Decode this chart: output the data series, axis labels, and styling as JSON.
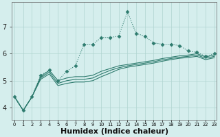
{
  "x": [
    0,
    1,
    2,
    3,
    4,
    5,
    6,
    7,
    8,
    9,
    10,
    11,
    12,
    13,
    14,
    15,
    16,
    17,
    18,
    19,
    20,
    21,
    22,
    23
  ],
  "line1_x": [
    0,
    1,
    2,
    3,
    4,
    5,
    6,
    7,
    8,
    9,
    10,
    11,
    12,
    13,
    14,
    15,
    16,
    17,
    18,
    19,
    20,
    21,
    22,
    23
  ],
  "line1_y": [
    4.4,
    3.9,
    4.4,
    5.2,
    5.4,
    5.0,
    5.35,
    5.55,
    6.35,
    6.35,
    6.6,
    6.6,
    6.65,
    7.55,
    6.75,
    6.65,
    6.4,
    6.35,
    6.35,
    6.3,
    6.1,
    6.05,
    5.9,
    6.0
  ],
  "line2_x": [
    0,
    1,
    2,
    3,
    4,
    5,
    6,
    7,
    8,
    9,
    10,
    11,
    12,
    13,
    14,
    15,
    16,
    17,
    18,
    19,
    20,
    21,
    22,
    23
  ],
  "line2_y": [
    4.4,
    3.9,
    4.4,
    5.15,
    5.38,
    5.0,
    5.1,
    5.15,
    5.15,
    5.2,
    5.35,
    5.45,
    5.55,
    5.6,
    5.65,
    5.7,
    5.75,
    5.82,
    5.87,
    5.92,
    5.95,
    6.0,
    5.88,
    5.95
  ],
  "line3_x": [
    0,
    1,
    2,
    3,
    4,
    5,
    6,
    7,
    8,
    9,
    10,
    11,
    12,
    13,
    14,
    15,
    16,
    17,
    18,
    19,
    20,
    21,
    22,
    23
  ],
  "line3_y": [
    4.4,
    3.9,
    4.4,
    5.1,
    5.32,
    4.9,
    5.0,
    5.05,
    5.05,
    5.1,
    5.25,
    5.38,
    5.48,
    5.55,
    5.6,
    5.65,
    5.7,
    5.77,
    5.82,
    5.87,
    5.9,
    5.95,
    5.83,
    5.9
  ],
  "line4_x": [
    0,
    1,
    2,
    3,
    4,
    5,
    6,
    7,
    8,
    9,
    10,
    11,
    12,
    13,
    14,
    15,
    16,
    17,
    18,
    19,
    20,
    21,
    22,
    23
  ],
  "line4_y": [
    4.4,
    3.9,
    4.4,
    5.05,
    5.25,
    4.82,
    4.9,
    4.95,
    4.95,
    5.0,
    5.15,
    5.28,
    5.42,
    5.5,
    5.55,
    5.6,
    5.65,
    5.72,
    5.78,
    5.83,
    5.86,
    5.9,
    5.78,
    5.85
  ],
  "line_color": "#2e7b6e",
  "bg_color": "#d5eeed",
  "grid_color": "#afd4d0",
  "xlabel": "Humidex (Indice chaleur)",
  "xlabel_fontsize": 8,
  "yticks": [
    4,
    5,
    6,
    7
  ],
  "xlim": [
    -0.3,
    23.3
  ],
  "ylim": [
    3.55,
    7.9
  ]
}
